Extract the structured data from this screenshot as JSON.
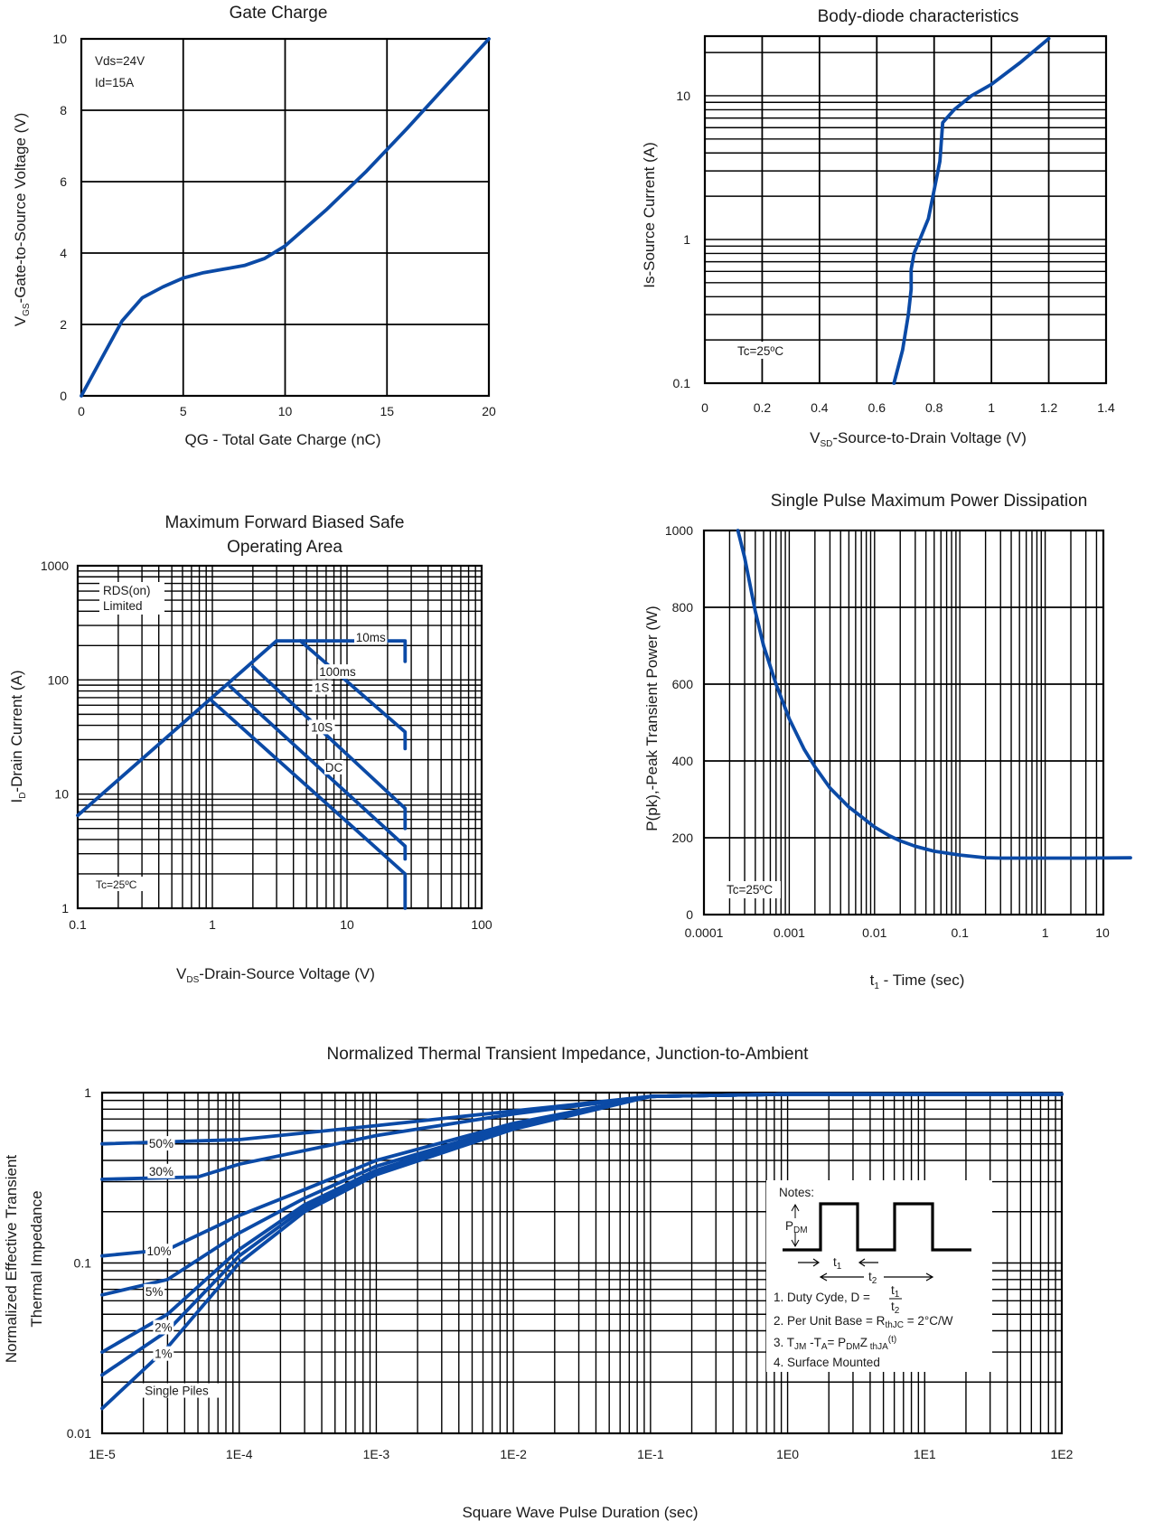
{
  "charts": {
    "gate_charge": {
      "title": "Gate Charge",
      "xlabel": "QG - Total Gate Charge (nC)",
      "ylabel": "-Gate-to-Source Voltage (V)",
      "ylabel_sym": "V",
      "ylabel_sub": "GS",
      "xticks": [
        "0",
        "5",
        "10",
        "15",
        "20"
      ],
      "yticks": [
        "0",
        "2",
        "4",
        "6",
        "8",
        "10"
      ],
      "condition1": "Vds=24V",
      "condition2": "Id=15A"
    },
    "body_diode": {
      "title": "Body-diode characteristics",
      "xlabel_sym": "V",
      "xlabel_sub": "SD",
      "xlabel": "-Source-to-Drain Voltage (V)",
      "ylabel": "Is-Source Current (A)",
      "xticks": [
        "0",
        "0.2",
        "0.4",
        "0.6",
        "0.8",
        "1",
        "1.2",
        "1.4"
      ],
      "yticks": [
        "0.1",
        "1",
        "10"
      ],
      "condition": "Tc=25ºC"
    },
    "soa": {
      "title_line1": "Maximum Forward Biased Safe",
      "title_line2": "Operating Area",
      "xlabel_sym": "V",
      "xlabel_sub": "DS",
      "xlabel": "-Drain-Source Voltage (V)",
      "ylabel_sym": "I",
      "ylabel_sub": "D",
      "ylabel": "-Drain Current (A)",
      "xticks": [
        "0.1",
        "1",
        "10",
        "100"
      ],
      "yticks": [
        "1",
        "10",
        "100",
        "1000"
      ],
      "rds_line1": "RDS(on)",
      "rds_line2": "Limited",
      "condition": "Tc=25ºC",
      "labels": [
        "10ms",
        "100ms",
        "1S",
        "10S",
        "DC"
      ]
    },
    "power": {
      "title": "Single Pulse Maximum Power Dissipation",
      "xlabel": "t",
      "xlabel_sub": "1",
      "xlabel_rest": " - Time (sec)",
      "ylabel": "P(pk),-Peak Transient Power (W)",
      "xticks": [
        "0.0001",
        "0.001",
        "0.01",
        "0.1",
        "1",
        "10"
      ],
      "yticks": [
        "0",
        "200",
        "400",
        "600",
        "800",
        "1000"
      ],
      "condition": "Tc=25ºC"
    },
    "thermal": {
      "title": "Normalized Thermal Transient Impedance, Junction-to-Ambient",
      "xlabel": "Square Wave Pulse Duration (sec)",
      "ylabel_line1": "Normalized Effective Transient",
      "ylabel_line2": "Thermal Impedance",
      "xticks": [
        "1E-5",
        "1E-4",
        "1E-3",
        "1E-2",
        "1E-1",
        "1E0",
        "1E1",
        "1E2"
      ],
      "yticks": [
        "0.01",
        "0.1",
        "1"
      ],
      "curve_labels": [
        "50%",
        "30%",
        "10%",
        "5%",
        "2%",
        "1%",
        "Single Piles"
      ],
      "notes": {
        "heading": "Notes:",
        "pdm": "P",
        "pdm_sub": "DM",
        "t1": "t",
        "t1_sub": "1",
        "t2": "t",
        "t2_sub": "2",
        "n1": "1. Duty Cyde, D =",
        "n2a": "2. Per Unit Base = R",
        "n2sub": "thJC",
        "n2b": " = 2°C/W",
        "n3a": "3. T",
        "n3sub1": "JM",
        "n3b": " -T",
        "n3sub2": "A",
        "n3c": "= P",
        "n3sub3": "DM",
        "n3d": "Z",
        "n3sub4": " thJA",
        "n3sup": "(t)",
        "n4": "4. Surface Mounted"
      }
    }
  },
  "chart_data": [
    {
      "type": "line",
      "title": "Gate Charge",
      "xlabel": "QG - Total Gate Charge (nC)",
      "ylabel": "VGS -Gate-to-Source Voltage (V)",
      "xlim": [
        0,
        20
      ],
      "ylim": [
        0,
        10
      ],
      "x": [
        0,
        1,
        2,
        3,
        4,
        5,
        6,
        7,
        8,
        9,
        10,
        11,
        12,
        14,
        16,
        18,
        20
      ],
      "y": [
        0,
        1.05,
        2.1,
        2.75,
        3.05,
        3.3,
        3.45,
        3.55,
        3.65,
        3.85,
        4.2,
        4.7,
        5.2,
        6.3,
        7.5,
        8.75,
        10
      ]
    },
    {
      "type": "line",
      "title": "Body-diode characteristics",
      "xlabel": "VSD -Source-to-Drain Voltage (V)",
      "ylabel": "Is-Source Current (A)",
      "xlim": [
        0,
        1.4
      ],
      "ylim": [
        0.1,
        25
      ],
      "yscale": "log",
      "x": [
        0.66,
        0.69,
        0.71,
        0.72,
        0.72,
        0.73,
        0.75,
        0.78,
        0.8,
        0.82,
        0.83,
        0.87,
        0.93,
        1.0,
        1.1,
        1.2
      ],
      "y": [
        0.1,
        0.17,
        0.3,
        0.45,
        0.62,
        0.8,
        1.0,
        1.4,
        2.2,
        3.5,
        6.5,
        8.0,
        10.0,
        12.0,
        17.0,
        25.0
      ]
    },
    {
      "type": "line",
      "title": "Maximum Forward Biased Safe Operating Area",
      "xlabel": "VDS -Drain-Source Voltage (V)",
      "ylabel": "ID -Drain Current (A)",
      "xscale": "log",
      "yscale": "log",
      "xlim": [
        0.1,
        100
      ],
      "ylim": [
        1,
        1000
      ],
      "series": [
        {
          "name": "RDS(on) Limited",
          "x": [
            0.1,
            3
          ],
          "y": [
            6.5,
            220
          ]
        },
        {
          "name": "10ms",
          "x": [
            3,
            27,
            27
          ],
          "y": [
            220,
            220,
            145
          ]
        },
        {
          "name": "100ms",
          "x": [
            4.5,
            27,
            27
          ],
          "y": [
            220,
            35,
            25
          ]
        },
        {
          "name": "1S",
          "x": [
            2,
            27,
            27
          ],
          "y": [
            130,
            7.5,
            5
          ]
        },
        {
          "name": "10S",
          "x": [
            1.35,
            27,
            27
          ],
          "y": [
            88,
            3.5,
            2.7
          ]
        },
        {
          "name": "DC",
          "x": [
            1,
            27,
            27
          ],
          "y": [
            65,
            2,
            1
          ]
        }
      ]
    },
    {
      "type": "line",
      "title": "Single Pulse Maximum Power Dissipation",
      "xlabel": "t1 - Time (sec)",
      "ylabel": "P(pk),-Peak Transient Power (W)",
      "xscale": "log",
      "xlim": [
        0.0001,
        10
      ],
      "ylim": [
        0,
        1000
      ],
      "x": [
        0.00025,
        0.0003,
        0.0004,
        0.0005,
        0.0007,
        0.001,
        0.0015,
        0.002,
        0.003,
        0.005,
        0.007,
        0.01,
        0.015,
        0.02,
        0.03,
        0.05,
        0.1,
        0.2,
        0.3,
        1,
        3,
        10
      ],
      "y": [
        1000,
        930,
        790,
        700,
        600,
        510,
        430,
        385,
        330,
        280,
        255,
        228,
        205,
        192,
        178,
        165,
        155,
        148,
        147,
        147,
        147,
        148
      ]
    },
    {
      "type": "line",
      "title": "Normalized Thermal Transient Impedance, Junction-to-Ambient",
      "xlabel": "Square Wave Pulse Duration (sec)",
      "ylabel": "Normalized Effective Transient Thermal Impedance",
      "xscale": "log",
      "yscale": "log",
      "xlim": [
        1e-05,
        100
      ],
      "ylim": [
        0.01,
        1
      ],
      "series": [
        {
          "name": "50%",
          "x": [
            1e-05,
            0.0001,
            0.001,
            0.01,
            0.1,
            1,
            10,
            100
          ],
          "y": [
            0.5,
            0.53,
            0.64,
            0.78,
            0.95,
            0.98,
            0.98,
            0.98
          ]
        },
        {
          "name": "30%",
          "x": [
            1e-05,
            5e-05,
            0.0001,
            0.001,
            0.01,
            0.1,
            1,
            100
          ],
          "y": [
            0.31,
            0.32,
            0.38,
            0.56,
            0.75,
            0.95,
            0.98,
            0.98
          ]
        },
        {
          "name": "10%",
          "x": [
            1e-05,
            3e-05,
            0.0001,
            0.0003,
            0.001,
            0.01,
            0.1,
            1,
            100
          ],
          "y": [
            0.11,
            0.12,
            0.19,
            0.27,
            0.4,
            0.66,
            0.95,
            0.98,
            0.98
          ]
        },
        {
          "name": "5%",
          "x": [
            1e-05,
            3e-05,
            0.0001,
            0.0003,
            0.001,
            0.01,
            0.1,
            1,
            100
          ],
          "y": [
            0.065,
            0.08,
            0.15,
            0.24,
            0.37,
            0.64,
            0.95,
            0.98,
            0.98
          ]
        },
        {
          "name": "2%",
          "x": [
            1e-05,
            3e-05,
            0.0001,
            0.0003,
            0.001,
            0.01,
            0.1,
            1,
            100
          ],
          "y": [
            0.03,
            0.05,
            0.12,
            0.22,
            0.35,
            0.63,
            0.95,
            0.98,
            0.98
          ]
        },
        {
          "name": "1%",
          "x": [
            1e-05,
            3e-05,
            0.0001,
            0.0003,
            0.001,
            0.01,
            0.1,
            1,
            100
          ],
          "y": [
            0.022,
            0.04,
            0.11,
            0.21,
            0.34,
            0.62,
            0.95,
            0.98,
            0.98
          ]
        },
        {
          "name": "Single Piles",
          "x": [
            1e-05,
            3e-05,
            0.0001,
            0.0003,
            0.001,
            0.01,
            0.1,
            1,
            100
          ],
          "y": [
            0.014,
            0.032,
            0.1,
            0.2,
            0.33,
            0.61,
            0.95,
            0.98,
            0.98
          ]
        }
      ]
    }
  ]
}
